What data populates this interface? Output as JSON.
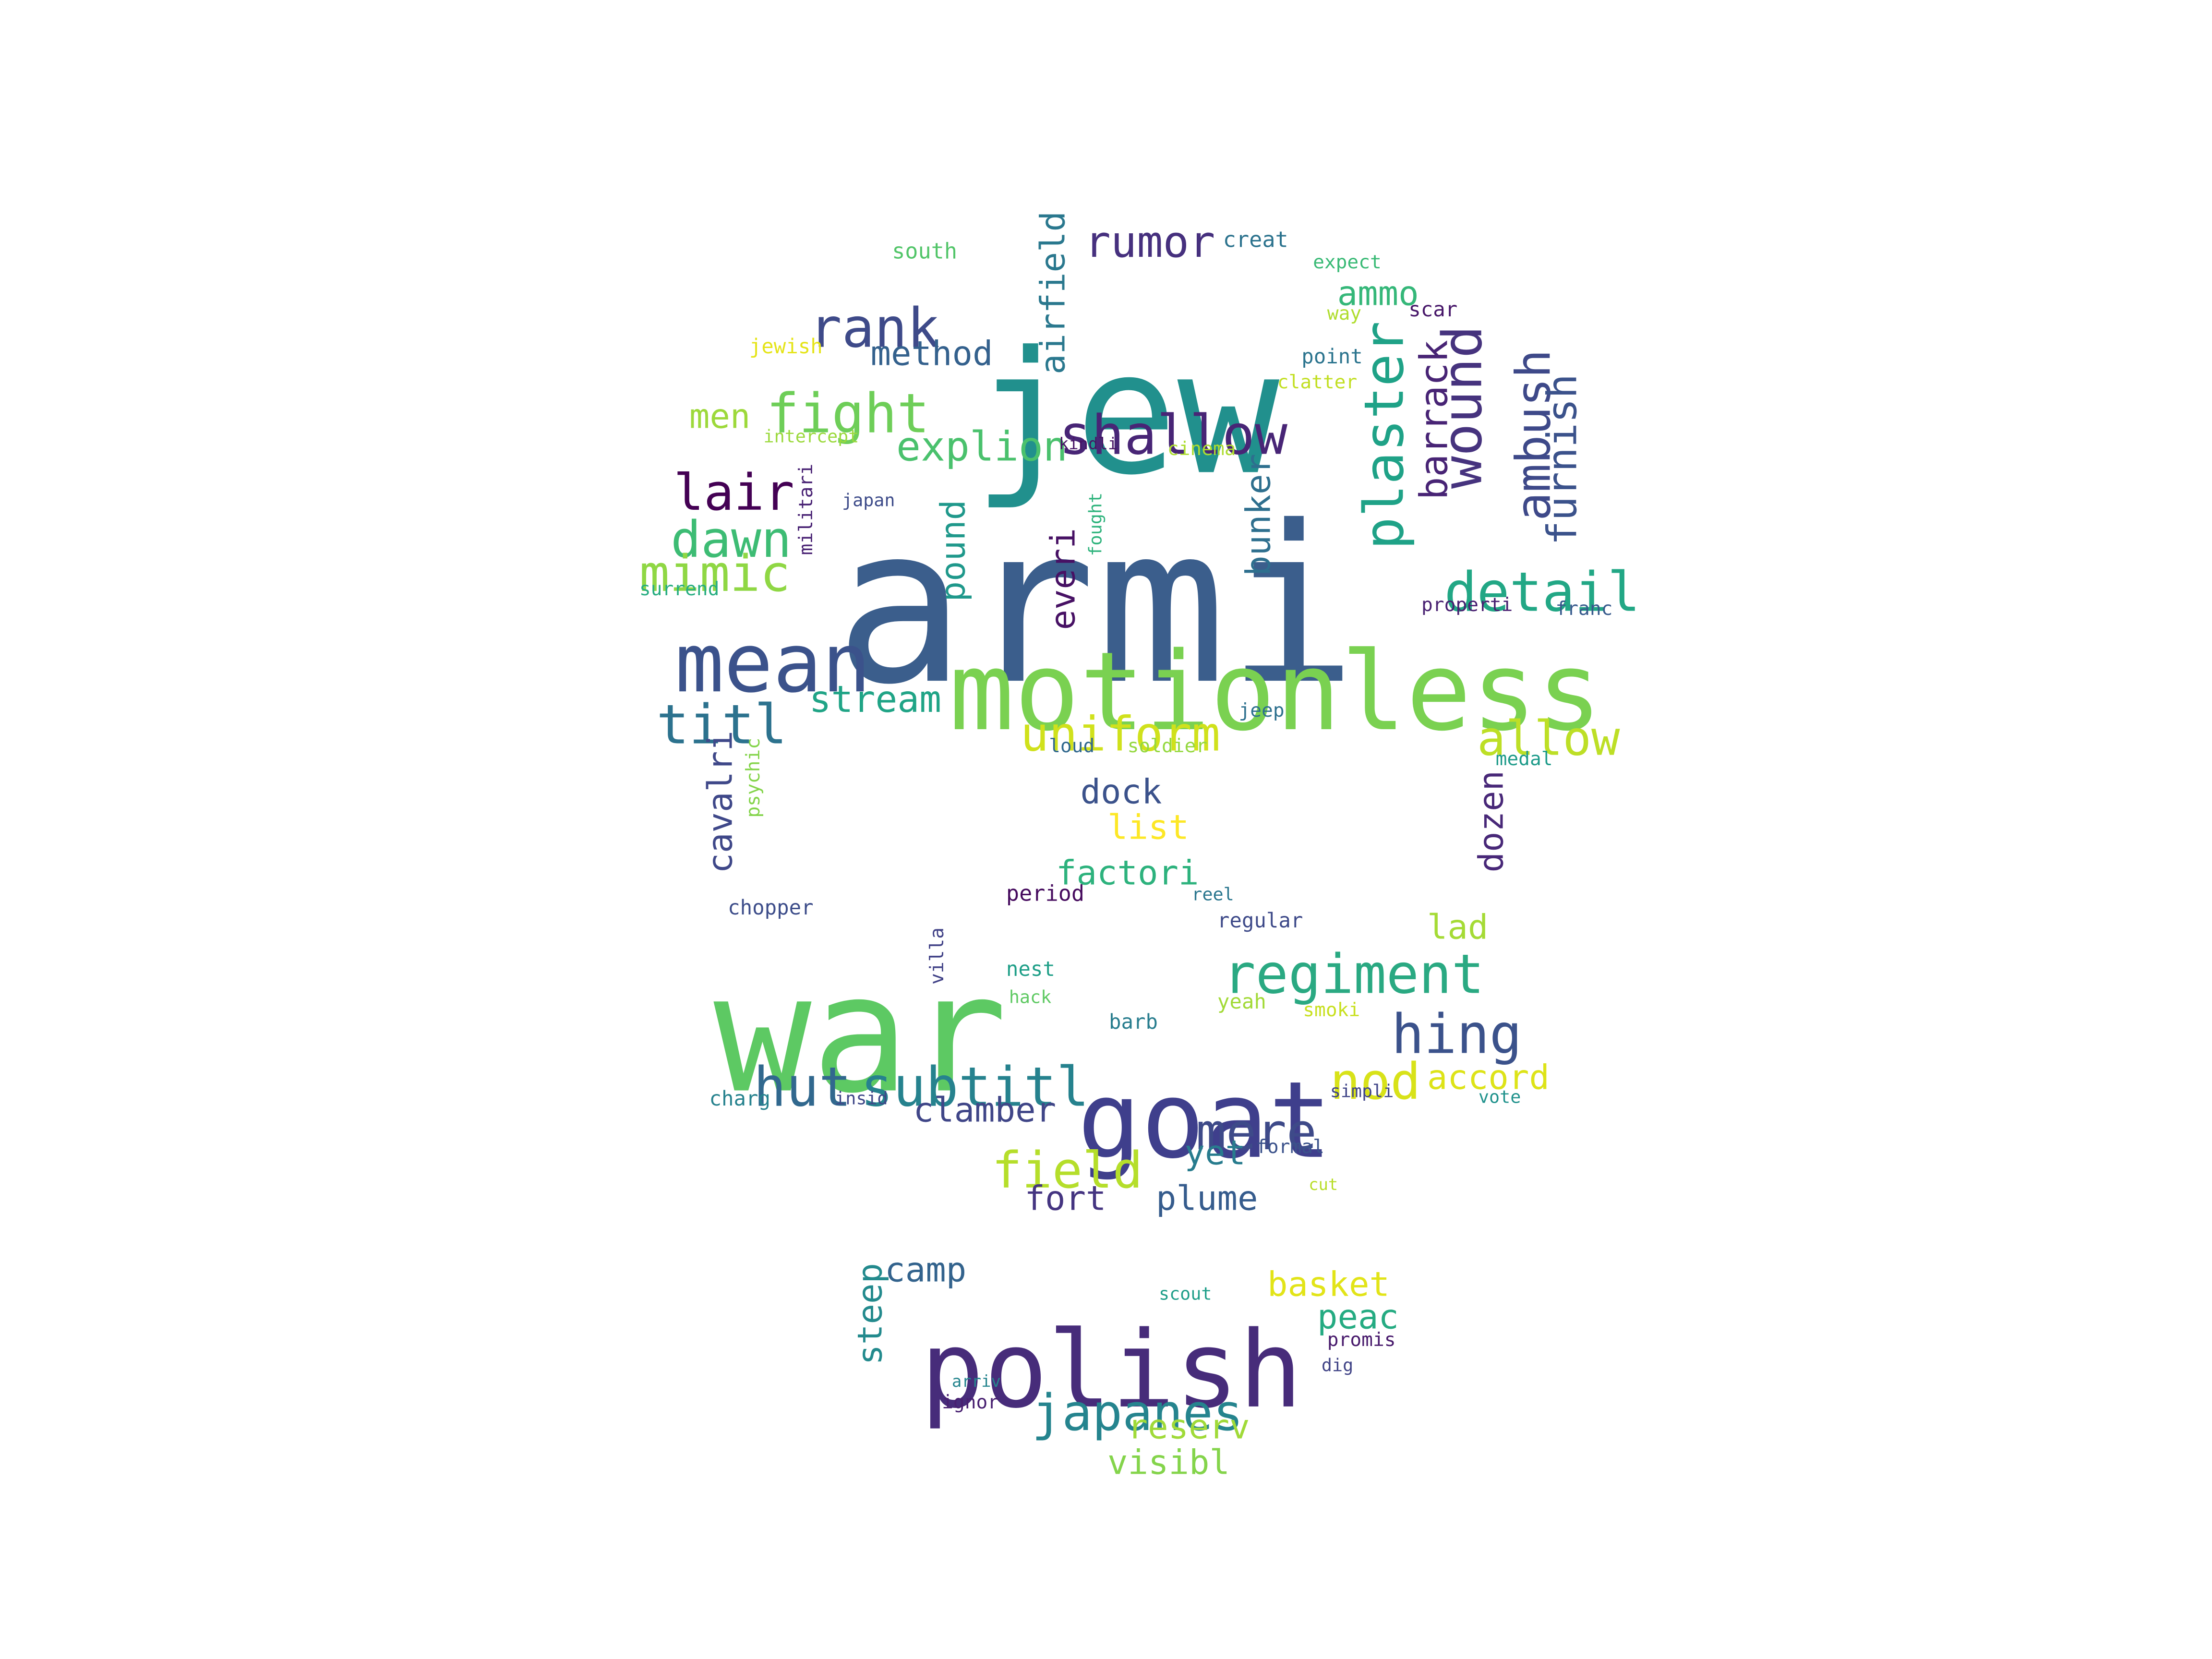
{
  "words": [
    {
      "text": "armi",
      "color": "#3b5e8c"
    },
    {
      "text": "jew",
      "color": "#21908d"
    },
    {
      "text": "war",
      "color": "#5dc963"
    },
    {
      "text": "goat",
      "color": "#3f3f8c"
    },
    {
      "text": "motionless",
      "color": "#7ad151"
    },
    {
      "text": "polish",
      "color": "#472c7a"
    },
    {
      "text": "mean",
      "color": "#3b528b"
    },
    {
      "text": "regiment",
      "color": "#2aa982"
    },
    {
      "text": "shallow",
      "color": "#482576"
    },
    {
      "text": "fight",
      "color": "#6ece58"
    },
    {
      "text": "rank",
      "color": "#3e4a89"
    },
    {
      "text": "rumor",
      "color": "#46307e"
    },
    {
      "text": "plaster",
      "color": "#1fa287"
    },
    {
      "text": "wound",
      "color": "#46337e"
    },
    {
      "text": "detail",
      "color": "#22a785"
    },
    {
      "text": "allow",
      "color": "#bddf26"
    },
    {
      "text": "uniform",
      "color": "#d0e11c"
    },
    {
      "text": "titl",
      "color": "#2c728e"
    },
    {
      "text": "dawn",
      "color": "#3dbc74"
    },
    {
      "text": "lair",
      "color": "#440154"
    },
    {
      "text": "mimic",
      "color": "#8fd744"
    },
    {
      "text": "hut",
      "color": "#31688e"
    },
    {
      "text": "subtitl",
      "color": "#26828e"
    },
    {
      "text": "hing",
      "color": "#3b528b"
    },
    {
      "text": "mere",
      "color": "#3e4a89"
    },
    {
      "text": "nod",
      "color": "#d8e219"
    },
    {
      "text": "field",
      "color": "#b5de2b"
    },
    {
      "text": "japanes",
      "color": "#25848e"
    },
    {
      "text": "ambush",
      "color": "#3e4989"
    },
    {
      "text": "furnish",
      "color": "#3b528b"
    },
    {
      "text": "barrack",
      "color": "#482475"
    },
    {
      "text": "explion",
      "color": "#4ac16d"
    },
    {
      "text": "stream",
      "color": "#20a486"
    },
    {
      "text": "method",
      "color": "#34618d"
    },
    {
      "text": "airfield",
      "color": "#2a788e"
    },
    {
      "text": "dock",
      "color": "#3b528b"
    },
    {
      "text": "list",
      "color": "#fde725"
    },
    {
      "text": "factori",
      "color": "#2db27d"
    },
    {
      "text": "cavalri",
      "color": "#3f4889"
    },
    {
      "text": "dozen",
      "color": "#482878"
    },
    {
      "text": "accord",
      "color": "#dde318"
    },
    {
      "text": "clamber",
      "color": "#404688"
    },
    {
      "text": "yet",
      "color": "#287c8e"
    },
    {
      "text": "fort",
      "color": "#453581"
    },
    {
      "text": "plume",
      "color": "#365c8d"
    },
    {
      "text": "pound",
      "color": "#1f988b"
    },
    {
      "text": "everi",
      "color": "#471164"
    },
    {
      "text": "bunker",
      "color": "#2e6f8e"
    },
    {
      "text": "ammo",
      "color": "#35b779"
    },
    {
      "text": "lad",
      "color": "#a5db36"
    },
    {
      "text": "men",
      "color": "#9dd93b"
    },
    {
      "text": "camp",
      "color": "#33638d"
    },
    {
      "text": "basket",
      "color": "#e2e418"
    },
    {
      "text": "peac",
      "color": "#25ab82"
    },
    {
      "text": "steep",
      "color": "#238a8d"
    },
    {
      "text": "reserv",
      "color": "#a0da39"
    },
    {
      "text": "visibl",
      "color": "#84d44b"
    },
    {
      "text": "south",
      "color": "#52c569"
    },
    {
      "text": "creat",
      "color": "#2c738e"
    },
    {
      "text": "expect",
      "color": "#3aba76"
    },
    {
      "text": "way",
      "color": "#b0dd2f"
    },
    {
      "text": "scar",
      "color": "#48186a"
    },
    {
      "text": "point",
      "color": "#2b748e"
    },
    {
      "text": "clatter",
      "color": "#c2df23"
    },
    {
      "text": "jewish",
      "color": "#e5e419"
    },
    {
      "text": "intercept",
      "color": "#9bd93c"
    },
    {
      "text": "kindli",
      "color": "#471365"
    },
    {
      "text": "cinema",
      "color": "#addc30"
    },
    {
      "text": "militari",
      "color": "#482173"
    },
    {
      "text": "japan",
      "color": "#3e4c8a"
    },
    {
      "text": "fought",
      "color": "#2eb37c"
    },
    {
      "text": "surrend",
      "color": "#27ad81"
    },
    {
      "text": "properti",
      "color": "#482071"
    },
    {
      "text": "franc",
      "color": "#375a8c"
    },
    {
      "text": "jeep",
      "color": "#2d708e"
    },
    {
      "text": "loud",
      "color": "#31688e"
    },
    {
      "text": "soldier",
      "color": "#95d840"
    },
    {
      "text": "medal",
      "color": "#1e9b8a"
    },
    {
      "text": "psychic",
      "color": "#84d44b"
    },
    {
      "text": "chopper",
      "color": "#3d4d8a"
    },
    {
      "text": "period",
      "color": "#460b5e"
    },
    {
      "text": "reel",
      "color": "#2a768e"
    },
    {
      "text": "regular",
      "color": "#3e4a89"
    },
    {
      "text": "nest",
      "color": "#1f9f88"
    },
    {
      "text": "villa",
      "color": "#414287"
    },
    {
      "text": "hack",
      "color": "#5ec962"
    },
    {
      "text": "barb",
      "color": "#287d8e"
    },
    {
      "text": "yeah",
      "color": "#a2da37"
    },
    {
      "text": "smoki",
      "color": "#c8e020"
    },
    {
      "text": "charg",
      "color": "#26828e"
    },
    {
      "text": "insid",
      "color": "#3f4788"
    },
    {
      "text": "simpli",
      "color": "#404588"
    },
    {
      "text": "vote",
      "color": "#20928c"
    },
    {
      "text": "formal",
      "color": "#3b528b"
    },
    {
      "text": "cut",
      "color": "#b8de29"
    },
    {
      "text": "scout",
      "color": "#1f9e89"
    },
    {
      "text": "promis",
      "color": "#481a6c"
    },
    {
      "text": "dig",
      "color": "#414487"
    },
    {
      "text": "arriv",
      "color": "#25858e"
    },
    {
      "text": "ignor",
      "color": "#482071"
    }
  ]
}
